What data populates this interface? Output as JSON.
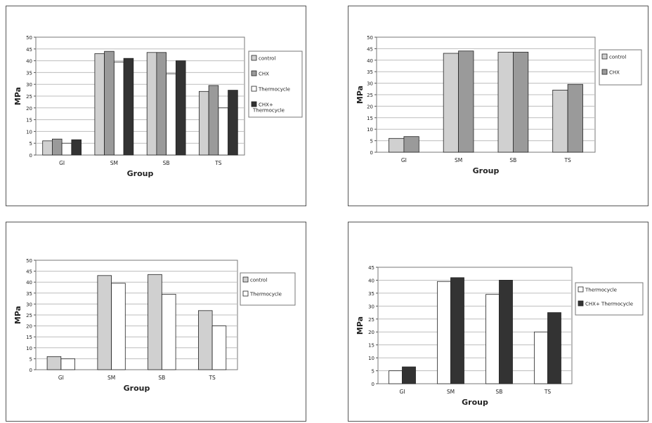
{
  "colors": {
    "control": "#d0d0d0",
    "chx": "#9a9a9a",
    "thermocycle": "#ffffff",
    "chx_thermocycle": "#333333"
  },
  "chart_data": [
    {
      "type": "bar",
      "categories": [
        "GI",
        "SM",
        "SB",
        "TS"
      ],
      "xlabel": "Group",
      "ylabel": "MPa",
      "ylim": [
        0,
        50
      ],
      "yticks": [
        0,
        5,
        10,
        15,
        20,
        25,
        30,
        35,
        40,
        45,
        50
      ],
      "grid": "horizontal",
      "legend": "right",
      "series": [
        {
          "name": "control",
          "values": [
            6,
            43,
            43.5,
            27
          ]
        },
        {
          "name": "CHX",
          "values": [
            6.8,
            44,
            43.5,
            29.5
          ]
        },
        {
          "name": "Thermocycle",
          "values": [
            5,
            39.5,
            34.5,
            20
          ]
        },
        {
          "name": "CHX+ Thermocycle",
          "values": [
            6.5,
            41,
            40,
            27.5
          ]
        }
      ]
    },
    {
      "type": "bar",
      "categories": [
        "GI",
        "SM",
        "SB",
        "TS"
      ],
      "xlabel": "Group",
      "ylabel": "MPa",
      "ylim": [
        0,
        50
      ],
      "yticks": [
        0,
        5,
        10,
        15,
        20,
        25,
        30,
        35,
        40,
        45,
        50
      ],
      "grid": "horizontal",
      "legend": "right",
      "series": [
        {
          "name": "control",
          "values": [
            6,
            43,
            43.5,
            27
          ]
        },
        {
          "name": "CHX",
          "values": [
            6.8,
            44,
            43.5,
            29.5
          ]
        }
      ]
    },
    {
      "type": "bar",
      "categories": [
        "GI",
        "SM",
        "SB",
        "TS"
      ],
      "xlabel": "Group",
      "ylabel": "MPa",
      "ylim": [
        0,
        50
      ],
      "yticks": [
        0,
        5,
        10,
        15,
        20,
        25,
        30,
        35,
        40,
        45,
        50
      ],
      "grid": "horizontal",
      "legend": "right",
      "series": [
        {
          "name": "control",
          "values": [
            6,
            43,
            43.5,
            27
          ]
        },
        {
          "name": "Thermocycle",
          "values": [
            5,
            39.5,
            34.5,
            20
          ]
        }
      ]
    },
    {
      "type": "bar",
      "categories": [
        "GI",
        "SM",
        "SB",
        "TS"
      ],
      "xlabel": "Group",
      "ylabel": "MPa",
      "ylim": [
        0,
        45
      ],
      "yticks": [
        0,
        5,
        10,
        15,
        20,
        25,
        30,
        35,
        40,
        45
      ],
      "grid": "horizontal",
      "legend": "right",
      "series": [
        {
          "name": "Thermocycle",
          "values": [
            5,
            39.5,
            34.5,
            20
          ]
        },
        {
          "name": "CHX+ Thermocycle",
          "values": [
            6.5,
            41,
            40,
            27.5
          ]
        }
      ]
    }
  ]
}
